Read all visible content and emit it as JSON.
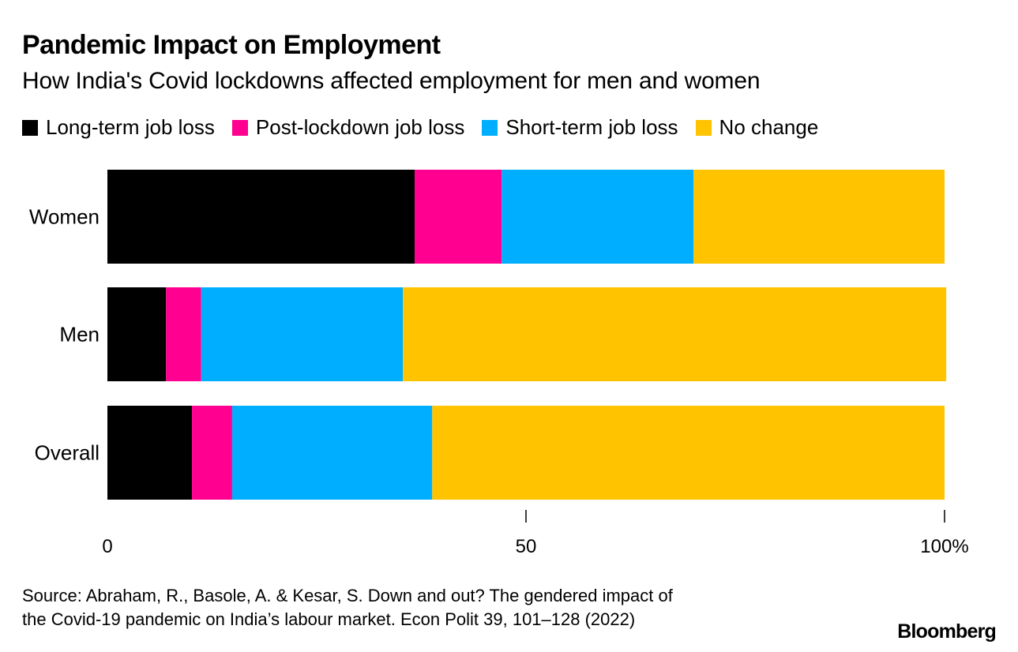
{
  "title": "Pandemic Impact on Employment",
  "subtitle": "How India's Covid lockdowns affected employment for men and women",
  "legend": [
    {
      "label": "Long-term job loss",
      "color": "#000000"
    },
    {
      "label": "Post-lockdown job loss",
      "color": "#ff0090"
    },
    {
      "label": "Short-term job loss",
      "color": "#00aeff"
    },
    {
      "label": "No change",
      "color": "#ffc300"
    }
  ],
  "chart_data": {
    "type": "bar",
    "orientation": "horizontal",
    "stacked": true,
    "categories": [
      "Women",
      "Men",
      "Overall"
    ],
    "series": [
      {
        "name": "Long-term job loss",
        "color": "#000000",
        "values": [
          36.7,
          7.0,
          10.1
        ]
      },
      {
        "name": "Post-lockdown job loss",
        "color": "#ff0090",
        "values": [
          10.4,
          4.2,
          4.8
        ]
      },
      {
        "name": "Short-term job loss",
        "color": "#00aeff",
        "values": [
          22.9,
          24.1,
          23.9
        ]
      },
      {
        "name": "No change",
        "color": "#ffc300",
        "values": [
          30.0,
          64.9,
          61.2
        ]
      }
    ],
    "xlim": [
      0,
      100
    ],
    "xticks": [
      {
        "value": 0,
        "label": "0"
      },
      {
        "value": 50,
        "label": "50"
      },
      {
        "value": 100,
        "label": "100%"
      }
    ],
    "xlabel": "",
    "ylabel": ""
  },
  "source": {
    "line1": "Source: Abraham, R., Basole, A. & Kesar, S. Down and out? The gendered impact of",
    "line2": "the Covid-19 pandemic on India’s labour market. Econ Polit 39, 101–128 (2022)"
  },
  "brand": "Bloomberg"
}
